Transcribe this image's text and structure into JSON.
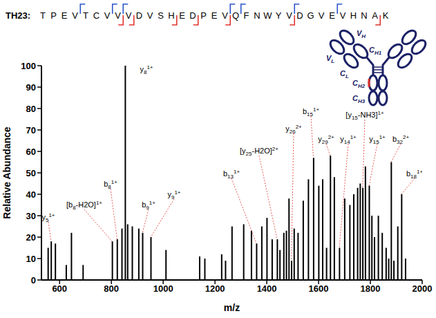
{
  "sequence_label": "TH23:",
  "sequence": [
    "T",
    "P",
    "E",
    "V",
    "T",
    "C",
    "V",
    "V",
    "V",
    "D",
    "V",
    "S",
    "H",
    "E",
    "D",
    "P",
    "E",
    "V",
    "Q",
    "F",
    "N",
    "W",
    "Y",
    "V",
    "D",
    "G",
    "V",
    "E",
    "V",
    "H",
    "N",
    "A",
    "K"
  ],
  "b_cleavages": [
    4,
    7,
    8,
    18,
    19,
    24,
    28
  ],
  "y_cleavages": [
    8,
    9,
    13,
    15,
    18,
    24,
    32
  ],
  "antibody_labels": [
    {
      "text": "V",
      "sub": "H"
    },
    {
      "text": "V",
      "sub": "L"
    },
    {
      "text": "C",
      "sub": "H1"
    },
    {
      "text": "C",
      "sub": "L"
    },
    {
      "text": "C",
      "sub": "H2"
    },
    {
      "text": "C",
      "sub": "H3"
    }
  ],
  "chart_data": {
    "type": "bar",
    "x_label": "m/z",
    "y_label": "Relative Abundance",
    "xlim": [
      530,
      2000
    ],
    "xticks": [
      600,
      800,
      1000,
      1200,
      1400,
      1600,
      1800,
      2000
    ],
    "ylim": [
      0,
      100
    ],
    "yticks": [
      0,
      10,
      20,
      30,
      40,
      50,
      60,
      70,
      80,
      90,
      100
    ],
    "grid": false,
    "color": "#000000",
    "mz": [
      555,
      567,
      583,
      625,
      645,
      690,
      803,
      822,
      840,
      853,
      862,
      880,
      905,
      920,
      952,
      1010,
      1140,
      1160,
      1225,
      1240,
      1265,
      1310,
      1340,
      1360,
      1380,
      1400,
      1420,
      1440,
      1450,
      1465,
      1475,
      1485,
      1495,
      1505,
      1520,
      1540,
      1560,
      1580,
      1600,
      1615,
      1630,
      1645,
      1660,
      1680,
      1700,
      1720,
      1735,
      1750,
      1760,
      1770,
      1780,
      1795,
      1805,
      1815,
      1830,
      1845,
      1860,
      1870,
      1880,
      1890,
      1905,
      1920,
      1935
    ],
    "values": [
      15,
      18,
      17,
      7,
      22,
      7,
      18,
      19,
      24,
      100,
      26,
      25,
      24,
      22,
      20,
      14,
      11,
      10,
      12,
      9,
      25,
      26,
      23,
      17,
      25,
      29,
      19,
      19,
      14,
      22,
      23,
      38,
      9,
      24,
      22,
      37,
      47,
      57,
      44,
      47,
      15,
      58,
      48,
      15,
      38,
      35,
      40,
      43,
      45,
      43,
      53,
      44,
      30,
      20,
      30,
      22,
      15,
      10,
      55,
      9,
      25,
      40,
      10
    ],
    "annotations": [
      {
        "mz": 567,
        "intensity": 18,
        "ion": "y",
        "index": "5",
        "charge": "1+"
      },
      {
        "mz": 803,
        "intensity": 18,
        "prefix": "[",
        "ion": "b",
        "index": "8",
        "suffix": "-H2O]",
        "charge": "1+"
      },
      {
        "mz": 822,
        "intensity": 19,
        "ion": "b",
        "index": "8",
        "charge": "1+"
      },
      {
        "mz": 853,
        "intensity": 100,
        "ion": "y",
        "index": "8",
        "charge": "1+"
      },
      {
        "mz": 920,
        "intensity": 22,
        "ion": "b",
        "index": "9",
        "charge": "1+"
      },
      {
        "mz": 952,
        "intensity": 20,
        "ion": "y",
        "index": "9",
        "charge": "1+"
      },
      {
        "mz": 1360,
        "intensity": 17,
        "ion": "b",
        "index": "13",
        "charge": "1+"
      },
      {
        "mz": 1440,
        "intensity": 19,
        "prefix": "[",
        "ion": "y",
        "index": "25",
        "suffix": "-H2O]",
        "charge": "2+"
      },
      {
        "mz": 1495,
        "intensity": 9,
        "ion": "y",
        "index": "26",
        "charge": "2+"
      },
      {
        "mz": 1580,
        "intensity": 57,
        "ion": "b",
        "index": "15",
        "charge": "1+"
      },
      {
        "mz": 1645,
        "intensity": 58,
        "ion": "y",
        "index": "29",
        "charge": "2+"
      },
      {
        "mz": 1680,
        "intensity": 15,
        "ion": "y",
        "index": "14",
        "charge": "1+"
      },
      {
        "mz": 1770,
        "intensity": 43,
        "prefix": "[",
        "ion": "y",
        "index": "15",
        "suffix": "-NH3]",
        "charge": "1+"
      },
      {
        "mz": 1795,
        "intensity": 44,
        "ion": "y",
        "index": "15",
        "charge": "1+"
      },
      {
        "mz": 1880,
        "intensity": 55,
        "ion": "b",
        "index": "32",
        "charge": "2+"
      },
      {
        "mz": 1920,
        "intensity": 40,
        "ion": "b",
        "index": "18",
        "charge": "1+"
      }
    ]
  }
}
